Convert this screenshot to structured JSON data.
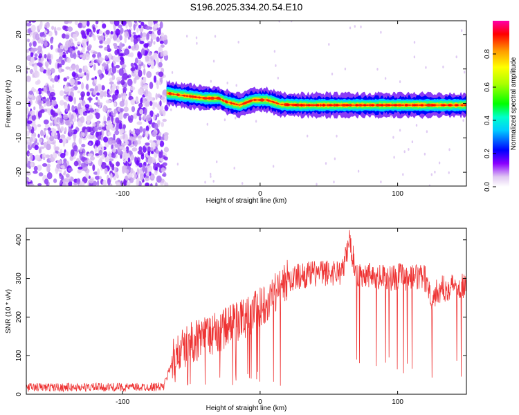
{
  "chart_data": [
    {
      "type": "heatmap",
      "title": "S196.2025.334.20.54.E10",
      "xlabel": "Height of straight line (km)",
      "ylabel": "Frequency (Hz)",
      "xlim": [
        -170,
        150
      ],
      "ylim": [
        -24,
        24
      ],
      "xticks": [
        -100,
        0,
        100
      ],
      "yticks": [
        20,
        10,
        0,
        -10,
        -20
      ],
      "noise_region_km": [
        -170,
        -68
      ],
      "signal_track": [
        {
          "x": -68,
          "y": 3
        },
        {
          "x": -60,
          "y": 2.5
        },
        {
          "x": -50,
          "y": 2
        },
        {
          "x": -40,
          "y": 1.5
        },
        {
          "x": -30,
          "y": 1.5
        },
        {
          "x": -25,
          "y": 0.5
        },
        {
          "x": -15,
          "y": -0.5
        },
        {
          "x": -5,
          "y": 1
        },
        {
          "x": 5,
          "y": 1
        },
        {
          "x": 15,
          "y": -0.3
        },
        {
          "x": 30,
          "y": -0.5
        },
        {
          "x": 60,
          "y": -0.5
        },
        {
          "x": 100,
          "y": -0.5
        },
        {
          "x": 150,
          "y": -0.5
        }
      ],
      "colorbar": {
        "label": "Normalized spectral amplitude",
        "ticks": [
          "0.0",
          "0.2",
          "0.4",
          "0.6",
          "0.8"
        ],
        "range": [
          0,
          1
        ]
      }
    },
    {
      "type": "line",
      "title": "",
      "xlabel": "Height of straight line (km)",
      "ylabel": "SNR (10 * v/v)",
      "xlim": [
        -170,
        150
      ],
      "ylim": [
        0,
        430
      ],
      "xticks": [
        -100,
        0,
        100
      ],
      "yticks": [
        0,
        100,
        200,
        300,
        400
      ],
      "color": "#ee3333",
      "x": [
        -170,
        -150,
        -130,
        -110,
        -90,
        -70,
        -64,
        -58,
        -50,
        -40,
        -30,
        -20,
        -10,
        0,
        10,
        20,
        30,
        40,
        50,
        60,
        65,
        70,
        80,
        90,
        100,
        110,
        120,
        125,
        130,
        140,
        150
      ],
      "y": [
        18,
        18,
        18,
        18,
        18,
        20,
        85,
        110,
        135,
        150,
        160,
        185,
        200,
        225,
        262,
        295,
        308,
        312,
        315,
        318,
        400,
        310,
        312,
        300,
        305,
        302,
        300,
        250,
        270,
        280,
        285
      ]
    }
  ]
}
